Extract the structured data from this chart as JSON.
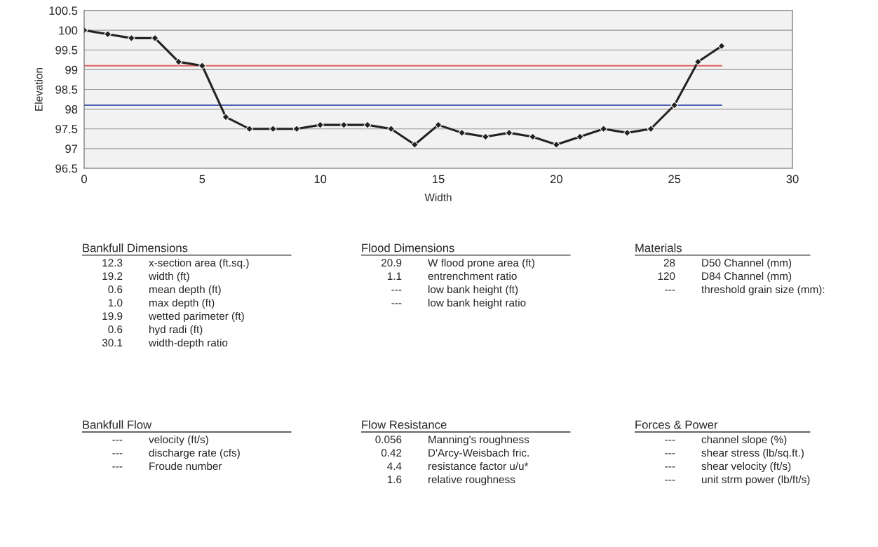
{
  "chart_data": [
    {
      "type": "line",
      "xlabel": "Width",
      "ylabel": "Elevation",
      "xlim": [
        0,
        30
      ],
      "xticks": [
        0,
        5,
        10,
        15,
        20,
        25,
        30
      ],
      "ylim": [
        96.5,
        100.5
      ],
      "yticks": [
        96.5,
        97,
        97.5,
        98,
        98.5,
        99,
        99.5,
        100,
        100.5
      ],
      "grid": "y",
      "series": [
        {
          "color": "#e06060",
          "x": [
            0,
            27
          ],
          "values": [
            99.1,
            99.1
          ],
          "marker": "none"
        },
        {
          "color": "#5060b0",
          "x": [
            0,
            27
          ],
          "values": [
            98.1,
            98.1
          ],
          "marker": "none"
        },
        {
          "color": "#222222",
          "marker": "diamond",
          "line_style": "solid",
          "x": [
            0,
            1,
            2,
            3,
            4,
            5,
            6,
            7,
            8,
            9,
            10,
            11,
            12,
            13,
            14,
            15,
            16,
            17,
            18,
            19,
            20,
            21,
            22,
            23,
            24,
            25,
            26,
            27
          ],
          "values": [
            100,
            99.9,
            99.8,
            99.8,
            99.2,
            99.1,
            97.8,
            97.5,
            97.5,
            97.5,
            97.6,
            97.6,
            97.6,
            97.5,
            97.1,
            97.6,
            97.4,
            97.3,
            97.4,
            97.3,
            97.1,
            97.3,
            97.5,
            97.4,
            97.5,
            98.1,
            99.2,
            99.6
          ]
        }
      ]
    },
    {
      "type": "other",
      "title": "Bankfull Dimensions",
      "annotations": [
        "12.3",
        "x-section area (ft.sq.)",
        "19.2",
        "width (ft)",
        "0.6",
        "mean depth (ft)",
        "1.0",
        "max depth (ft)",
        "19.9",
        "wetted parimeter (ft)",
        "0.6",
        "hyd radi (ft)",
        "30.1",
        "width-depth ratio"
      ]
    },
    {
      "type": "other",
      "title": "Flood Dimensions",
      "annotations": [
        "20.9",
        "W flood prone area (ft)",
        "1.1",
        "entrenchment ratio",
        "---",
        "low bank height (ft)",
        "---",
        "low bank height ratio"
      ]
    },
    {
      "type": "other",
      "title": "Materials",
      "annotations": [
        "28",
        "D50 Channel (mm)",
        "120",
        "D84 Channel (mm)",
        "---",
        "threshold grain size (mm):"
      ]
    },
    {
      "type": "other",
      "title": "Bankfull Flow",
      "annotations": [
        "---",
        "velocity (ft/s)",
        "---",
        "discharge rate (cfs)",
        "---",
        "Froude number"
      ]
    },
    {
      "type": "other",
      "title": "Flow Resistance",
      "annotations": [
        "0.056",
        "Manning's roughness",
        "0.42",
        "D'Arcy-Weisbach fric.",
        "4.4",
        "resistance factor u/u*",
        "1.6",
        "relative roughness"
      ]
    },
    {
      "type": "other",
      "title": "Forces & Power",
      "annotations": [
        "---",
        "channel slope (%)",
        "---",
        "shear stress (lb/sq.ft.)",
        "---",
        "shear velocity (ft/s)",
        "---",
        "unit strm power (lb/ft/s)"
      ]
    }
  ]
}
